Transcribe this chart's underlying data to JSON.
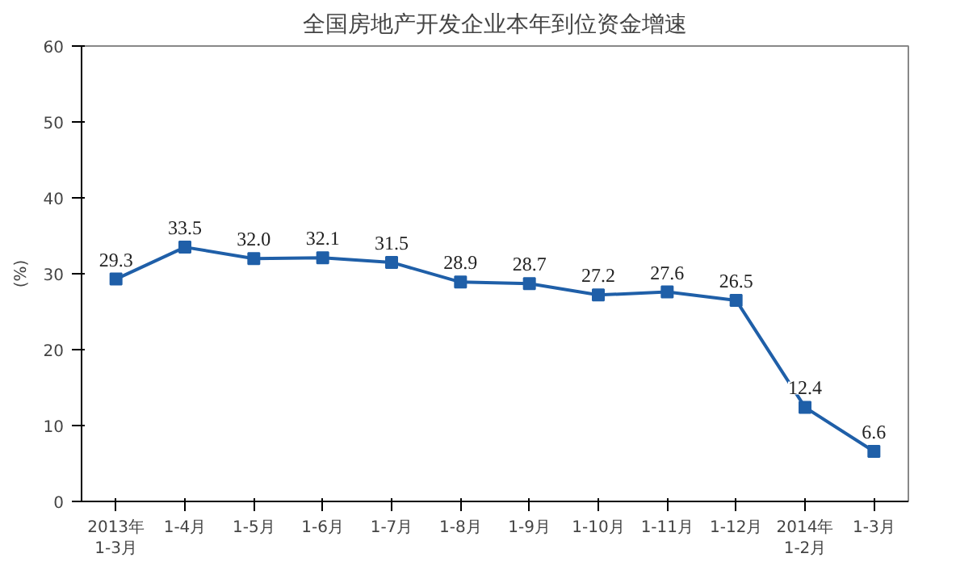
{
  "chart_data": {
    "type": "line",
    "title": "全国房地产开发企业本年到位资金增速",
    "ylabel": "(%)",
    "categories": [
      "2013年\n1-3月",
      "1-4月",
      "1-5月",
      "1-6月",
      "1-7月",
      "1-8月",
      "1-9月",
      "1-10月",
      "1-11月",
      "1-12月",
      "2014年\n1-2月",
      "1-3月"
    ],
    "series": [
      {
        "color": "#1f5fa8",
        "values": [
          29.3,
          33.5,
          32.0,
          32.1,
          31.5,
          28.9,
          28.7,
          27.2,
          27.6,
          26.5,
          12.4,
          6.6
        ]
      }
    ],
    "value_labels": [
      "29.3",
      "33.5",
      "32.0",
      "32.1",
      "31.5",
      "28.9",
      "28.7",
      "27.2",
      "27.6",
      "26.5",
      "12.4",
      "6.6"
    ],
    "ylim": [
      0,
      60
    ],
    "yticks": [
      0,
      10,
      20,
      30,
      40,
      50,
      60
    ],
    "grid": false,
    "marker": "square",
    "line_style": "solid"
  }
}
